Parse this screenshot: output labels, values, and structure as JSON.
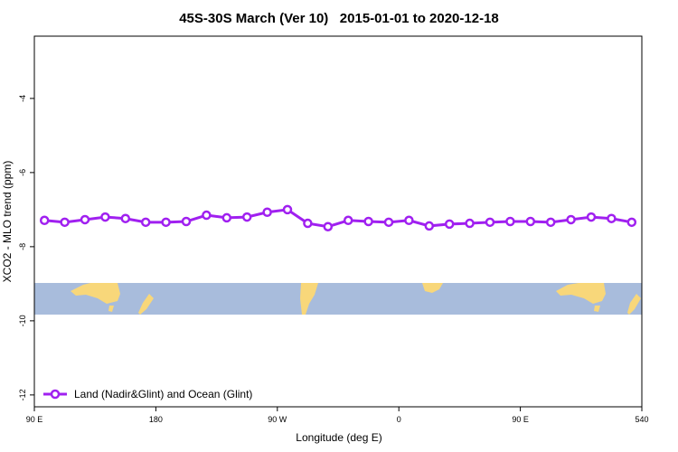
{
  "chart_data": {
    "type": "line",
    "title": "45S-30S March (Ver 10)   2015-01-01 to 2020-12-18",
    "x_label": "Longitude (deg E)",
    "y_label": "XCO2 - MLO trend (ppm)",
    "x": [
      97.5,
      112.5,
      127.5,
      142.5,
      157.5,
      172.5,
      187.5,
      202.5,
      217.5,
      232.5,
      247.5,
      262.5,
      277.5,
      292.5,
      307.5,
      322.5,
      337.5,
      352.5,
      367.5,
      382.5,
      397.5,
      412.5,
      427.5,
      442.5,
      457.5,
      472.5,
      487.5,
      502.5,
      517.5,
      532.5
    ],
    "series": [
      {
        "name": "Land (Nadir&Glint) and Ocean (Glint)",
        "color": "#a020f0",
        "values": [
          -7.29,
          -7.34,
          -7.27,
          -7.2,
          -7.24,
          -7.34,
          -7.34,
          -7.32,
          -7.15,
          -7.22,
          -7.2,
          -7.07,
          -7.0,
          -7.37,
          -7.46,
          -7.29,
          -7.32,
          -7.34,
          -7.29,
          -7.44,
          -7.39,
          -7.37,
          -7.34,
          -7.32,
          -7.32,
          -7.34,
          -7.27,
          -7.2,
          -7.24,
          -7.34
        ]
      }
    ],
    "xlim": [
      90,
      540
    ],
    "xticks": [
      {
        "value": 90,
        "label": "90 E"
      },
      180,
      {
        "value": 270,
        "label": "90 W"
      },
      {
        "value": 360,
        "label": "0"
      },
      {
        "value": 450,
        "label": "90 E"
      },
      540
    ],
    "ylim": [
      -12.32,
      -2.32
    ],
    "yticks": [
      -12,
      -10,
      -8,
      -6,
      -4
    ],
    "legend": "bottom-left"
  }
}
